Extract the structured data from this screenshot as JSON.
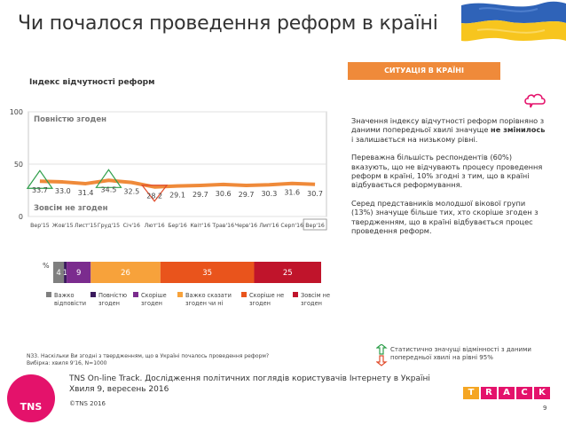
{
  "page_title": "Чи почалося проведення реформ в країні",
  "badge": "СИТУАЦІЯ В КРАЇНІ",
  "chart_title": "Індекс відчутності реформ",
  "description": {
    "p1_before": "Значення індексу відчутності реформ порівняно з даними попередньої хвилі значуще ",
    "p1_bold": "не змінилось",
    "p1_after": " і залишається на низькому рівні.",
    "p2": "Переважна більшість респондентів (60%) вказують, що не відчувають процесу проведення реформ в країні, 10% згодні з тим, що в країні відбувається реформування.",
    "p3": "Серед представників молодшої вікової групи (13%) значуще більше тих, хто скоріше згоден з твердженням, що в країні відбувається процес проведення реформ."
  },
  "note_line1": "N33. Наскільки Ви згодні з твердженням, що в Україні почалось проведення реформ?",
  "note_line2": "Вибірка: хвиля 9'16, N=1000",
  "significance_note": "Статистично значущі відмінності з даними попередньої хвилі на рівні 95%",
  "footer_line1": "TNS On-line Track. Дослідження політичних поглядів користувачів Інтернету в Україні",
  "footer_line2": "Хвиля 9, вересень 2016",
  "copyright": "©TNS 2016",
  "page_number": "9",
  "logo_text": "TNS",
  "track_letters": [
    "T",
    "R",
    "A",
    "C",
    "K"
  ],
  "colors": {
    "line": "#ef8a3a",
    "up_marker": "#2e9e4a",
    "down_marker": "#e04b2b",
    "badge": "#ef8a3a",
    "logo": "#e4126b",
    "flag_blue": "#2f63b8",
    "flag_yellow": "#f7c51e"
  },
  "chart_data": [
    {
      "type": "line",
      "ylim": [
        0,
        100
      ],
      "yticks": [
        0,
        50,
        100
      ],
      "top_label": "Повністю згоден",
      "bottom_label": "Зовсім не згоден",
      "categories": [
        "Вер'15",
        "Жов'15",
        "Лист'15",
        "Груд'15",
        "Січ'16",
        "Лют'16",
        "Бер'16",
        "Квіт'16",
        "Трав'16",
        "Черв'16",
        "Лип'16",
        "Серп'16",
        "Вер'16"
      ],
      "values": [
        33.7,
        33.0,
        31.4,
        34.5,
        32.5,
        28.2,
        29.1,
        29.7,
        30.6,
        29.7,
        30.3,
        31.6,
        30.7
      ],
      "value_labels": [
        "33.7",
        "33.0",
        "31.4",
        "34.5",
        "32.5",
        "28.2",
        "29.1",
        "29.7",
        "30.6",
        "29.7",
        "30.3",
        "31.6",
        "30.7"
      ],
      "significant_up": [
        0,
        3
      ],
      "significant_down": [
        5
      ],
      "highlight_category": 12
    },
    {
      "type": "bar",
      "orientation": "horizontal-stacked",
      "unit": "%",
      "series": [
        {
          "name": "Важко відповісти",
          "value": 4,
          "color": "#7f7f7f"
        },
        {
          "name": "Повністю згоден",
          "value": 1,
          "color": "#3a1a5c"
        },
        {
          "name": "Скоріше згоден",
          "value": 9,
          "color": "#7b2c8e"
        },
        {
          "name": "Важко сказати згоден чи ні",
          "value": 26,
          "color": "#f7a23b"
        },
        {
          "name": "Скоріше не згоден",
          "value": 35,
          "color": "#e9541c"
        },
        {
          "name": "Зовсім не згоден",
          "value": 25,
          "color": "#c0142b"
        }
      ]
    }
  ]
}
